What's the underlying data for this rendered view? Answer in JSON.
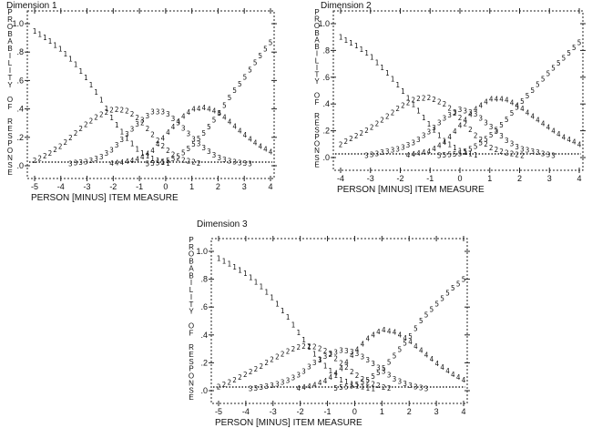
{
  "chart_data": [
    {
      "type": "line",
      "title": "Dimension 1",
      "xlabel": "PERSON [MINUS] ITEM MEASURE",
      "ylabel": "PROBABILITY OF RESPONSE",
      "xlim": [
        -5,
        4
      ],
      "ylim": [
        0,
        1
      ],
      "x_ticks": [
        "-5",
        "-4",
        "-3",
        "-2",
        "-1",
        "0",
        "1",
        "2",
        "3",
        "4"
      ],
      "y_ticks": [
        ".0",
        ".2",
        ".4",
        ".6",
        ".8",
        "1.0"
      ],
      "series": [
        {
          "name": "1",
          "x": [
            -5,
            -4.5,
            -4,
            -3.5,
            -3,
            -2.5,
            -2,
            -1.5,
            -1,
            -0.5,
            0,
            0.5,
            1,
            2,
            3,
            4
          ],
          "y": [
            0.95,
            0.89,
            0.82,
            0.73,
            0.61,
            0.48,
            0.32,
            0.2,
            0.1,
            0.05,
            0.02,
            0.01,
            0.0,
            0.0,
            0.0,
            0.0
          ]
        },
        {
          "name": "2",
          "x": [
            -5,
            -4.5,
            -4,
            -3.5,
            -3,
            -2.5,
            -2,
            -1.5,
            -1,
            -0.5,
            0,
            0.5,
            1,
            1.5,
            2,
            3,
            4
          ],
          "y": [
            0.04,
            0.08,
            0.14,
            0.22,
            0.3,
            0.36,
            0.4,
            0.39,
            0.33,
            0.22,
            0.12,
            0.05,
            0.03,
            0.01,
            0.0,
            0.0,
            0.0
          ]
        },
        {
          "name": "3",
          "x": [
            -5,
            -4,
            -3,
            -2.5,
            -2,
            -1.5,
            -1,
            -0.5,
            0,
            0.5,
            1,
            1.5,
            2,
            2.5,
            3,
            4
          ],
          "y": [
            0.0,
            0.01,
            0.03,
            0.06,
            0.12,
            0.22,
            0.31,
            0.38,
            0.38,
            0.3,
            0.2,
            0.12,
            0.06,
            0.03,
            0.02,
            0.0
          ]
        },
        {
          "name": "4",
          "x": [
            -5,
            -3,
            -2,
            -1.5,
            -1,
            -0.5,
            0,
            0.5,
            1,
            1.5,
            2,
            2.5,
            3,
            3.5,
            4
          ],
          "y": [
            0.0,
            0.0,
            0.02,
            0.03,
            0.05,
            0.11,
            0.22,
            0.32,
            0.4,
            0.41,
            0.38,
            0.3,
            0.22,
            0.15,
            0.1
          ]
        },
        {
          "name": "5",
          "x": [
            -5,
            -2,
            -1,
            0,
            0.5,
            1,
            1.5,
            2,
            2.5,
            3,
            3.5,
            4
          ],
          "y": [
            0.0,
            0.0,
            0.01,
            0.03,
            0.07,
            0.14,
            0.24,
            0.36,
            0.5,
            0.62,
            0.75,
            0.87
          ]
        }
      ]
    },
    {
      "type": "line",
      "title": "Dimension 2",
      "xlabel": "PERSON [MINUS] ITEM MEASURE",
      "ylabel": "PROBABILITY OF RESPONSE",
      "xlim": [
        -4,
        4
      ],
      "ylim": [
        0,
        1
      ],
      "x_ticks": [
        "-4",
        "-3",
        "-2",
        "-1",
        "0",
        "1",
        "2",
        "3",
        "4"
      ],
      "y_ticks": [
        ".0",
        ".2",
        ".4",
        ".6",
        ".8",
        "1.0"
      ],
      "series": [
        {
          "name": "1",
          "x": [
            -4,
            -3.5,
            -3,
            -2.5,
            -2,
            -1.5,
            -1,
            -0.5,
            0,
            0.5,
            1,
            2,
            3,
            4
          ],
          "y": [
            0.9,
            0.84,
            0.76,
            0.65,
            0.52,
            0.38,
            0.24,
            0.12,
            0.05,
            0.02,
            0.0,
            0.0,
            0.0,
            0.0
          ]
        },
        {
          "name": "2",
          "x": [
            -4,
            -3.5,
            -3,
            -2.5,
            -2,
            -1.5,
            -1,
            -0.5,
            0,
            0.5,
            1,
            1.5,
            2,
            3,
            4
          ],
          "y": [
            0.1,
            0.16,
            0.22,
            0.3,
            0.38,
            0.44,
            0.45,
            0.4,
            0.3,
            0.17,
            0.08,
            0.04,
            0.02,
            0.0,
            0.0
          ]
        },
        {
          "name": "3",
          "x": [
            -4,
            -3,
            -2,
            -1.5,
            -1,
            -0.5,
            0,
            0.5,
            1,
            1.5,
            2,
            3,
            4
          ],
          "y": [
            0.0,
            0.02,
            0.07,
            0.12,
            0.2,
            0.3,
            0.36,
            0.33,
            0.24,
            0.14,
            0.07,
            0.02,
            0.0
          ]
        },
        {
          "name": "4",
          "x": [
            -4,
            -2,
            -1,
            -0.5,
            0,
            0.5,
            1,
            1.5,
            2,
            2.5,
            3,
            3.5,
            4
          ],
          "y": [
            0.0,
            0.01,
            0.05,
            0.12,
            0.24,
            0.36,
            0.44,
            0.44,
            0.38,
            0.3,
            0.22,
            0.15,
            0.1
          ]
        },
        {
          "name": "5",
          "x": [
            -4,
            -1,
            0,
            0.5,
            1,
            1.5,
            2,
            2.5,
            3,
            3.5,
            4
          ],
          "y": [
            0.0,
            0.01,
            0.03,
            0.08,
            0.16,
            0.27,
            0.4,
            0.52,
            0.64,
            0.75,
            0.86
          ]
        }
      ]
    },
    {
      "type": "line",
      "title": "Dimension 3",
      "xlabel": "PERSON [MINUS] ITEM MEASURE",
      "ylabel": "PROBABILITY OF RESPONSE",
      "xlim": [
        -5,
        4
      ],
      "ylim": [
        0,
        1
      ],
      "x_ticks": [
        "-5",
        "-4",
        "-3",
        "-2",
        "-1",
        "0",
        "1",
        "2",
        "3",
        "4"
      ],
      "y_ticks": [
        ".0",
        ".2",
        ".4",
        ".6",
        ".8",
        "1.0"
      ],
      "series": [
        {
          "name": "1",
          "x": [
            -5,
            -4.5,
            -4,
            -3.5,
            -3,
            -2.5,
            -2,
            -1.5,
            -1,
            -0.5,
            0,
            0.5,
            1,
            2,
            3,
            4
          ],
          "y": [
            0.95,
            0.9,
            0.84,
            0.76,
            0.66,
            0.54,
            0.4,
            0.27,
            0.16,
            0.08,
            0.04,
            0.02,
            0.01,
            0.0,
            0.0,
            0.0
          ]
        },
        {
          "name": "2",
          "x": [
            -5,
            -4.5,
            -4,
            -3.5,
            -3,
            -2.5,
            -2,
            -1.5,
            -1,
            -0.5,
            0,
            0.5,
            1,
            1.5,
            2,
            3,
            4
          ],
          "y": [
            0.03,
            0.07,
            0.12,
            0.17,
            0.23,
            0.28,
            0.32,
            0.32,
            0.28,
            0.2,
            0.12,
            0.06,
            0.03,
            0.01,
            0.0,
            0.0,
            0.0
          ]
        },
        {
          "name": "3",
          "x": [
            -5,
            -4,
            -3,
            -2.5,
            -2,
            -1.5,
            -1,
            -0.5,
            0,
            0.5,
            1,
            1.5,
            2,
            2.5,
            3,
            4
          ],
          "y": [
            0.0,
            0.01,
            0.04,
            0.07,
            0.12,
            0.2,
            0.26,
            0.29,
            0.28,
            0.22,
            0.15,
            0.08,
            0.04,
            0.02,
            0.01,
            0.0
          ]
        },
        {
          "name": "4",
          "x": [
            -5,
            -3,
            -2,
            -1.5,
            -1,
            -0.5,
            0,
            0.5,
            1,
            1.5,
            2,
            2.5,
            3,
            3.5,
            4
          ],
          "y": [
            0.0,
            0.0,
            0.02,
            0.04,
            0.08,
            0.16,
            0.28,
            0.38,
            0.44,
            0.42,
            0.36,
            0.28,
            0.2,
            0.13,
            0.08
          ]
        },
        {
          "name": "5",
          "x": [
            -5,
            -2,
            -1,
            0,
            0.5,
            1,
            1.5,
            2,
            2.5,
            3,
            3.5,
            4
          ],
          "y": [
            0.0,
            0.0,
            0.01,
            0.04,
            0.08,
            0.15,
            0.26,
            0.38,
            0.52,
            0.62,
            0.72,
            0.8
          ]
        }
      ]
    }
  ]
}
